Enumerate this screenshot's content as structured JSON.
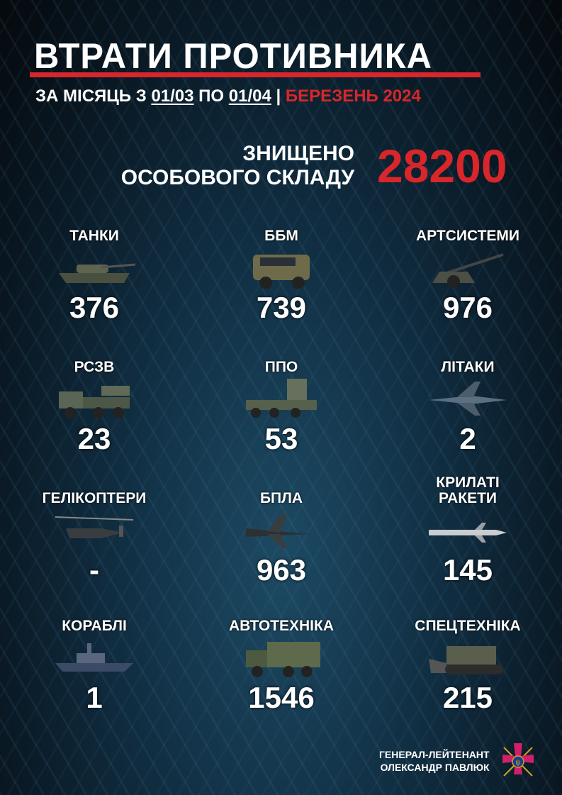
{
  "header": {
    "title": "ВТРАТИ ПРОТИВНИКА",
    "period_prefix": "ЗА МІСЯЦЬ  З ",
    "date_from": "01/03",
    "period_mid": " ПО ",
    "date_to": "01/04",
    "separator": " | ",
    "month": "БЕРЕЗЕНЬ 2024"
  },
  "personnel": {
    "line1": "ЗНИЩЕНО",
    "line2": "ОСОБОВОГО СКЛАДУ",
    "value": "28200"
  },
  "colors": {
    "accent": "#d9262b",
    "background": "#0f2a3b"
  },
  "items": [
    {
      "label": "ТАНКИ",
      "value": "376",
      "icon": "tank-icon"
    },
    {
      "label": "ББМ",
      "value": "739",
      "icon": "armored-vehicle-icon"
    },
    {
      "label": "АРТСИСТЕМИ",
      "value": "976",
      "icon": "artillery-icon"
    },
    {
      "label": "РСЗВ",
      "value": "23",
      "icon": "mlrs-icon"
    },
    {
      "label": "ППО",
      "value": "53",
      "icon": "air-defense-icon"
    },
    {
      "label": "ЛІТАКИ",
      "value": "2",
      "icon": "aircraft-icon"
    },
    {
      "label": "ГЕЛІКОПТЕРИ",
      "value": "-",
      "icon": "helicopter-icon"
    },
    {
      "label": "БПЛА",
      "value": "963",
      "icon": "drone-icon"
    },
    {
      "label": "КРИЛАТІ РАКЕТИ",
      "value": "145",
      "icon": "cruise-missile-icon"
    },
    {
      "label": "КОРАБЛІ",
      "value": "1",
      "icon": "ship-icon"
    },
    {
      "label": "АВТОТЕХНІКА",
      "value": "1546",
      "icon": "truck-icon"
    },
    {
      "label": "СПЕЦТЕХНІКА",
      "value": "215",
      "icon": "special-equipment-icon"
    }
  ],
  "signature": {
    "line1": "ГЕНЕРАЛ-ЛЕЙТЕНАНТ",
    "line2": "ОЛЕКСАНДР ПАВЛЮК"
  }
}
